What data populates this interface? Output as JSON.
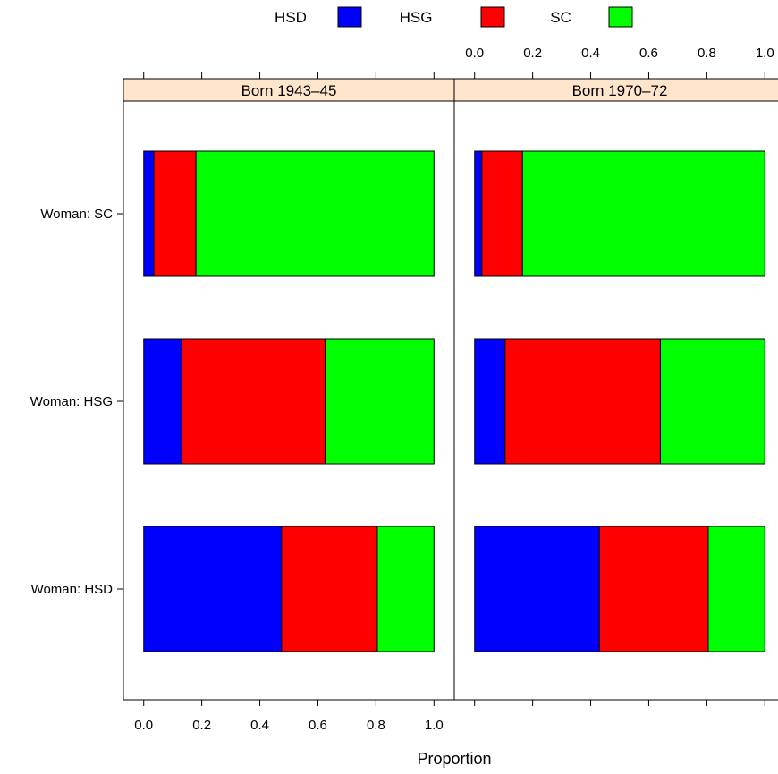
{
  "chart_data": {
    "type": "bar",
    "orientation": "horizontal",
    "stacked": true,
    "xlabel": "Proportion",
    "xlim": [
      -0.07,
      1.07
    ],
    "x_ticks": [
      "0.0",
      "0.2",
      "0.4",
      "0.6",
      "0.8",
      "1.0"
    ],
    "x_tick_values": [
      0,
      0.2,
      0.4,
      0.6,
      0.8,
      1.0
    ],
    "legend": {
      "placement": "top",
      "entries": [
        {
          "name": "HSD",
          "color": "#0000ff"
        },
        {
          "name": "HSG",
          "color": "#ff0000"
        },
        {
          "name": "SC",
          "color": "#00ff00"
        }
      ]
    },
    "strip_color": "#ffe5cc",
    "categories": [
      "Woman: SC",
      "Woman: HSG",
      "Woman: HSD"
    ],
    "panels": [
      {
        "title": "Born 1943–45",
        "series": [
          {
            "name": "HSD",
            "values": [
              0.035,
              0.13,
              0.475
            ]
          },
          {
            "name": "HSG",
            "values": [
              0.145,
              0.495,
              0.33
            ]
          },
          {
            "name": "SC",
            "values": [
              0.82,
              0.375,
              0.195
            ]
          }
        ]
      },
      {
        "title": "Born 1970–72",
        "series": [
          {
            "name": "HSD",
            "values": [
              0.025,
              0.105,
              0.43
            ]
          },
          {
            "name": "HSG",
            "values": [
              0.14,
              0.535,
              0.375
            ]
          },
          {
            "name": "SC",
            "values": [
              0.835,
              0.36,
              0.195
            ]
          }
        ]
      }
    ]
  }
}
